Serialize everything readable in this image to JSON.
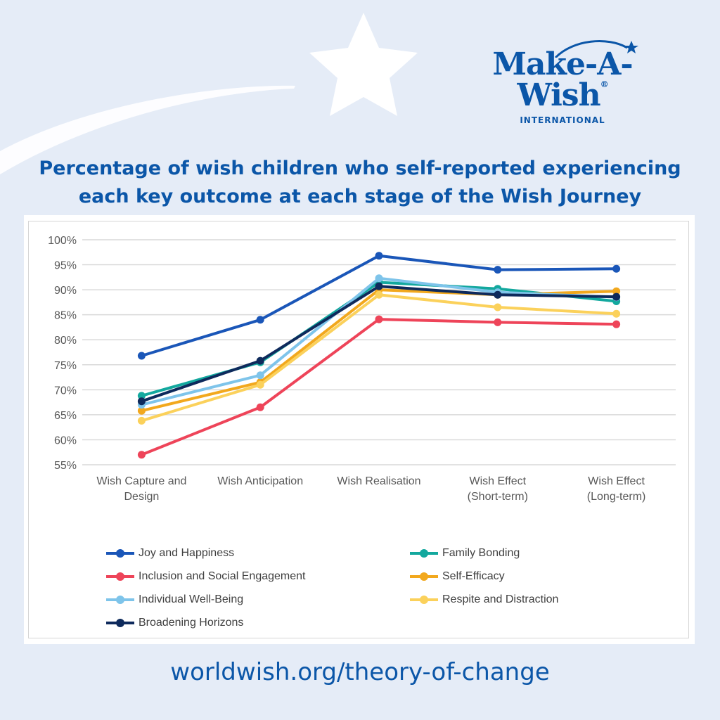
{
  "brand": {
    "logo_text": "Make-A-Wish",
    "logo_registered": "®",
    "logo_subtitle": "INTERNATIONAL",
    "color": "#0b56a8"
  },
  "headline": {
    "line1": "Percentage of wish children who self-reported experiencing",
    "line2": "each key outcome at each stage of the Wish Journey"
  },
  "footer": {
    "url": "worldwish.org/theory-of-change"
  },
  "chart_data": {
    "type": "line",
    "categories": [
      [
        "Wish Capture and",
        "Design"
      ],
      [
        "Wish Anticipation"
      ],
      [
        "Wish Realisation"
      ],
      [
        "Wish Effect",
        "(Short-term)"
      ],
      [
        "Wish Effect",
        "(Long-term)"
      ]
    ],
    "y_ticks": [
      "100%",
      "95%",
      "90%",
      "85%",
      "80%",
      "75%",
      "70%",
      "65%",
      "60%",
      "55%"
    ],
    "ylim": [
      55,
      100
    ],
    "y_unit": "%",
    "grid": true,
    "legend_position": "bottom, two columns",
    "series": [
      {
        "name": "Joy and Happiness",
        "color": "#1a56b8",
        "values": [
          76.8,
          84.0,
          96.8,
          94.0,
          94.2
        ]
      },
      {
        "name": "Family Bonding",
        "color": "#13a89e",
        "values": [
          68.8,
          75.5,
          91.5,
          90.2,
          87.7
        ]
      },
      {
        "name": "Inclusion and Social Engagement",
        "color": "#ee4459",
        "values": [
          57.0,
          66.5,
          84.1,
          83.5,
          83.1
        ]
      },
      {
        "name": "Self-Efficacy",
        "color": "#f2a81d",
        "values": [
          65.8,
          71.5,
          90.0,
          89.0,
          89.7
        ]
      },
      {
        "name": "Individual Well-Being",
        "color": "#7ec4ea",
        "values": [
          67.0,
          72.9,
          92.3,
          89.5,
          88.5
        ]
      },
      {
        "name": "Respite and Distraction",
        "color": "#fbd15b",
        "values": [
          63.8,
          71.0,
          89.0,
          86.5,
          85.2
        ]
      },
      {
        "name": "Broadening Horizons",
        "color": "#0e2a5c",
        "values": [
          67.7,
          75.8,
          90.7,
          89.0,
          88.6
        ]
      }
    ]
  }
}
